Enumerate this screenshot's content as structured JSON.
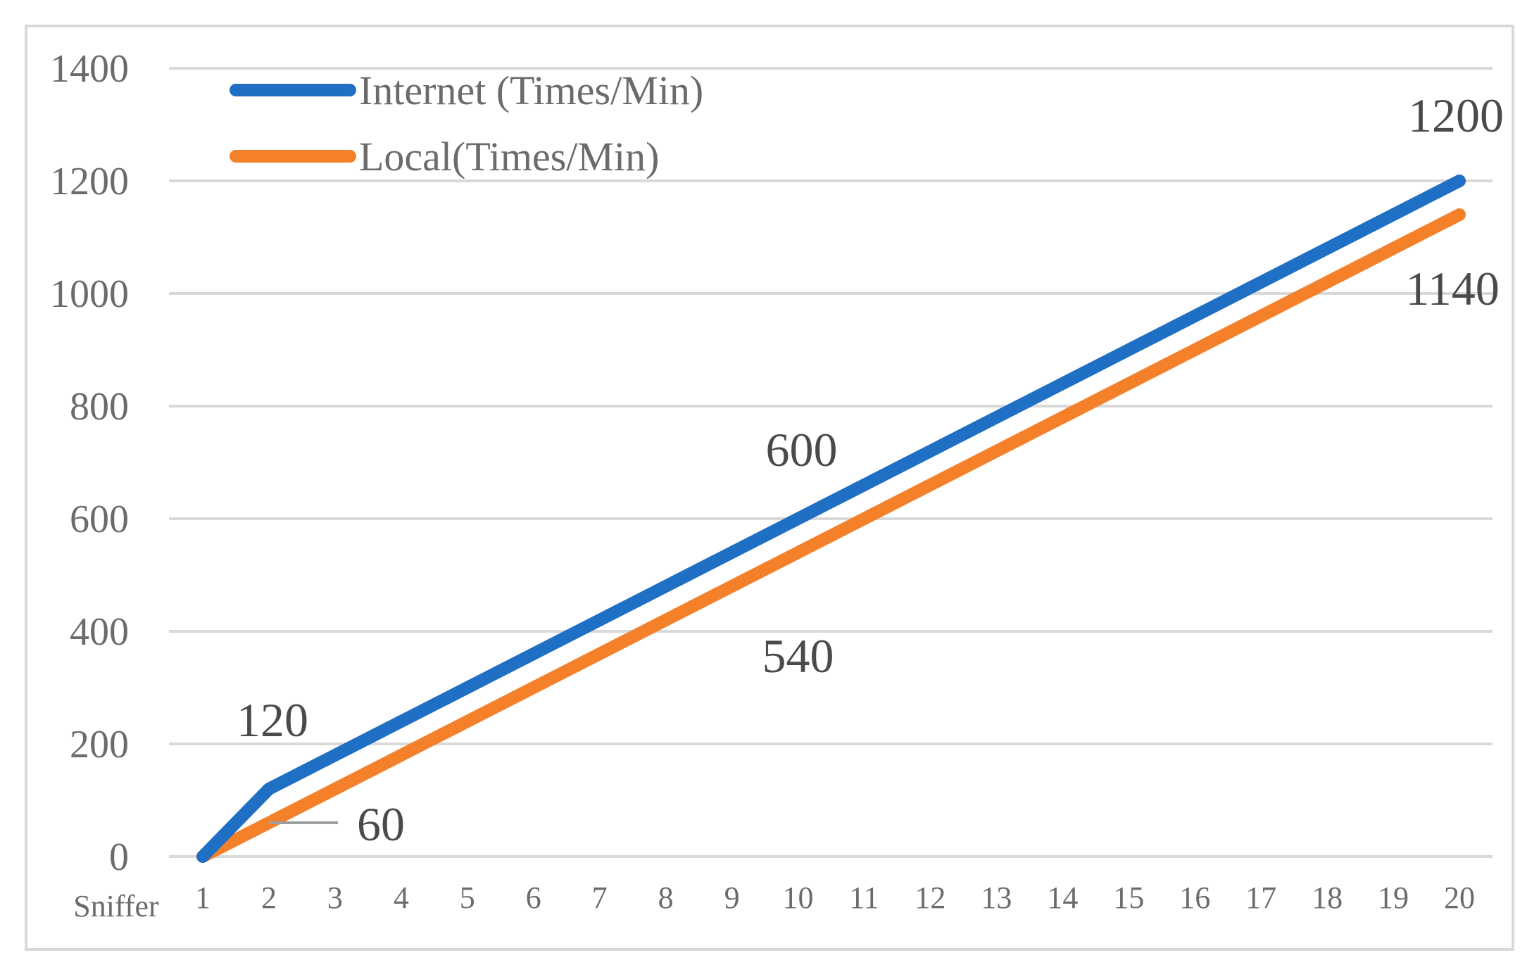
{
  "chart_data": {
    "type": "line",
    "title": "",
    "xlabel": "Sniffer",
    "ylabel": "",
    "categories": [
      "1",
      "2",
      "3",
      "4",
      "5",
      "6",
      "7",
      "8",
      "9",
      "10",
      "11",
      "12",
      "13",
      "14",
      "15",
      "16",
      "17",
      "18",
      "19",
      "20"
    ],
    "ylim": [
      0,
      1400
    ],
    "y_ticks": [
      0,
      200,
      400,
      600,
      800,
      1000,
      1200,
      1400
    ],
    "grid": true,
    "legend_position": "top-left",
    "series": [
      {
        "name": "Internet (Times/Min)",
        "color": "#1f6fc5",
        "values": [
          0,
          120,
          180,
          240,
          300,
          360,
          420,
          480,
          540,
          600,
          660,
          720,
          780,
          840,
          900,
          960,
          1020,
          1080,
          1140,
          1200
        ]
      },
      {
        "name": "Local(Times/Min)",
        "color": "#f5802a",
        "values": [
          0,
          60,
          120,
          180,
          240,
          300,
          360,
          420,
          480,
          540,
          600,
          660,
          720,
          780,
          840,
          900,
          960,
          1020,
          1080,
          1140
        ]
      }
    ],
    "annotations": [
      {
        "series": 0,
        "index": 1,
        "text": "120"
      },
      {
        "series": 1,
        "index": 1,
        "text": "60"
      },
      {
        "series": 0,
        "index": 9,
        "text": "600"
      },
      {
        "series": 1,
        "index": 9,
        "text": "540"
      },
      {
        "series": 0,
        "index": 19,
        "text": "1200"
      },
      {
        "series": 1,
        "index": 19,
        "text": "1140"
      }
    ]
  }
}
